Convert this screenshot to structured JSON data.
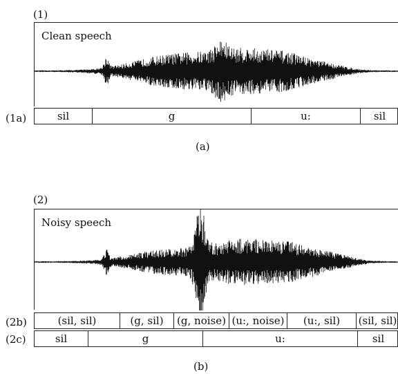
{
  "panel_a": {
    "label": "(1)",
    "title": "Clean speech",
    "row_label": "(1a)",
    "segments": [
      "sil",
      "g",
      "u:",
      "sil"
    ],
    "caption": "(a)"
  },
  "panel_b": {
    "label": "(2)",
    "title": "Noisy speech",
    "row_b_label": "(2b)",
    "row_b_segments": [
      "(sil, sil)",
      "(g, sil)",
      "(g, noise)",
      "(u:, noise)",
      "(u:, sil)",
      "(sil, sil)"
    ],
    "row_c_label": "(2c)",
    "row_c_segments": [
      "sil",
      "g",
      "u:",
      "sil"
    ],
    "caption": "(b)"
  }
}
